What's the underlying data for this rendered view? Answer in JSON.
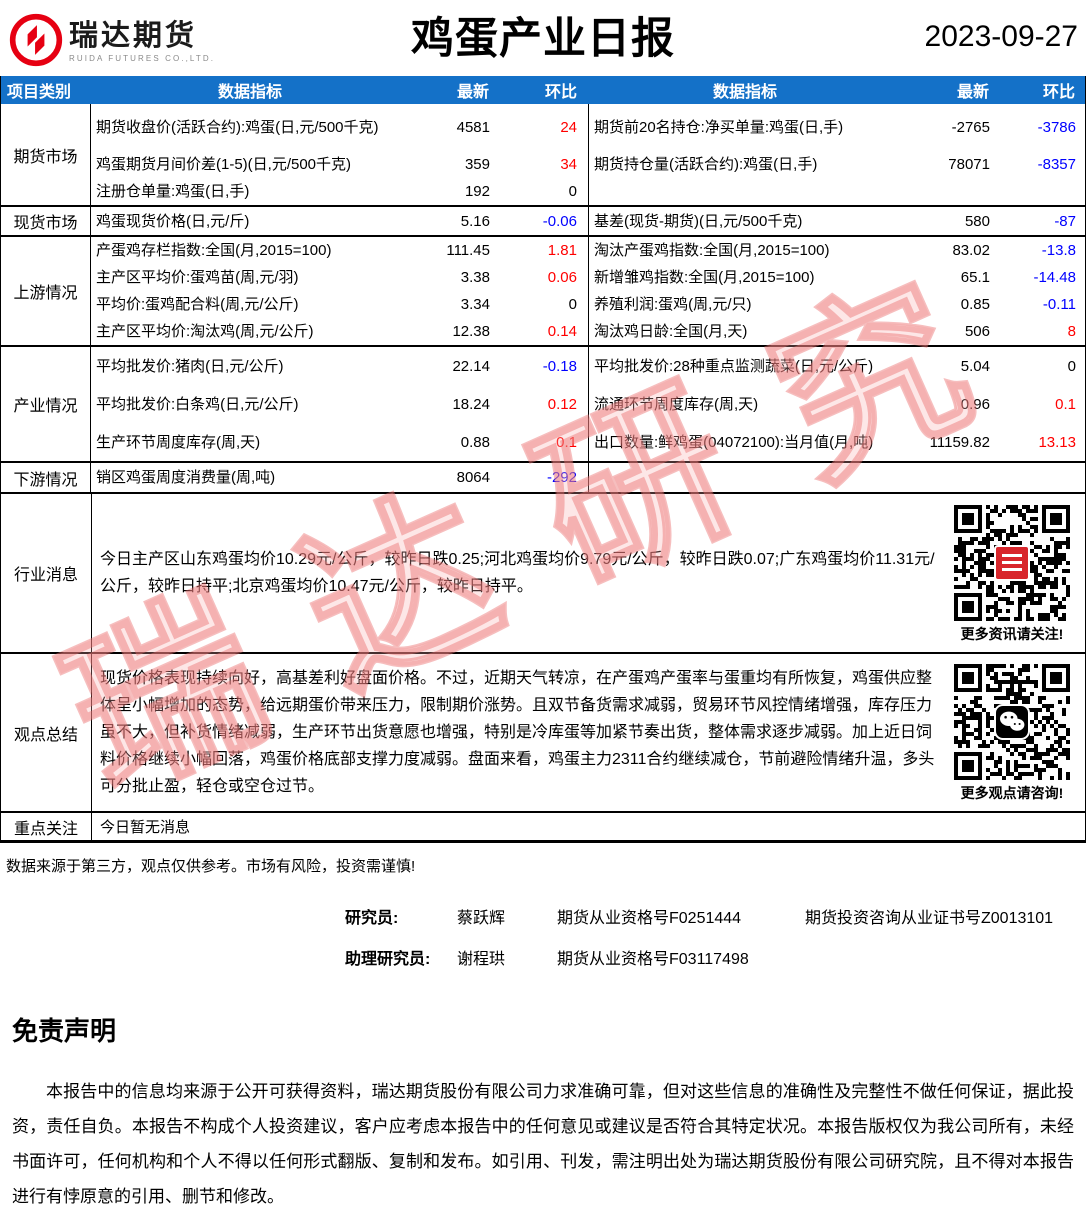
{
  "header": {
    "logo_text": "瑞达期货",
    "logo_subtext": "RUIDA FUTURES CO.,LTD.",
    "title": "鸡蛋产业日报",
    "date": "2023-09-27"
  },
  "colors": {
    "header_blue": "#1471c8",
    "increase_red": "#ff0000",
    "decrease_blue": "#0000ff",
    "logo_red": "#e60012"
  },
  "table": {
    "columns": [
      "项目类别",
      "数据指标",
      "最新",
      "环比",
      "数据指标",
      "最新",
      "环比"
    ],
    "sections": [
      {
        "category": "期货市场",
        "rows": [
          {
            "l_label": "期货收盘价(活跃合约):鸡蛋(日,元/500千克)",
            "l_value": "4581",
            "l_chg": "24",
            "l_chg_c": "red",
            "r_label": "期货前20名持仓:净买单量:鸡蛋(日,手)",
            "r_value": "-2765",
            "r_chg": "-3786",
            "r_chg_c": "blue"
          },
          {
            "l_label": "鸡蛋期货月间价差(1-5)(日,元/500千克)",
            "l_value": "359",
            "l_chg": "34",
            "l_chg_c": "red",
            "r_label": "期货持仓量(活跃合约):鸡蛋(日,手)",
            "r_value": "78071",
            "r_chg": "-8357",
            "r_chg_c": "blue"
          },
          {
            "l_label": "注册仓单量:鸡蛋(日,手)",
            "l_value": "192",
            "l_chg": "0",
            "l_chg_c": "black",
            "r_label": "",
            "r_value": "",
            "r_chg": "",
            "r_chg_c": "black"
          }
        ]
      },
      {
        "category": "现货市场",
        "rows": [
          {
            "l_label": "鸡蛋现货价格(日,元/斤)",
            "l_value": "5.16",
            "l_chg": "-0.06",
            "l_chg_c": "blue",
            "r_label": "基差(现货-期货)(日,元/500千克)",
            "r_value": "580",
            "r_chg": "-87",
            "r_chg_c": "blue"
          }
        ]
      },
      {
        "category": "上游情况",
        "rows": [
          {
            "l_label": "产蛋鸡存栏指数:全国(月,2015=100)",
            "l_value": "111.45",
            "l_chg": "1.81",
            "l_chg_c": "red",
            "r_label": "淘汰产蛋鸡指数:全国(月,2015=100)",
            "r_value": "83.02",
            "r_chg": "-13.8",
            "r_chg_c": "blue"
          },
          {
            "l_label": "主产区平均价:蛋鸡苗(周,元/羽)",
            "l_value": "3.38",
            "l_chg": "0.06",
            "l_chg_c": "red",
            "r_label": "新增雏鸡指数:全国(月,2015=100)",
            "r_value": "65.1",
            "r_chg": "-14.48",
            "r_chg_c": "blue"
          },
          {
            "l_label": "平均价:蛋鸡配合料(周,元/公斤)",
            "l_value": "3.34",
            "l_chg": "0",
            "l_chg_c": "black",
            "r_label": "养殖利润:蛋鸡(周,元/只)",
            "r_value": "0.85",
            "r_chg": "-0.11",
            "r_chg_c": "blue"
          },
          {
            "l_label": "主产区平均价:淘汰鸡(周,元/公斤)",
            "l_value": "12.38",
            "l_chg": "0.14",
            "l_chg_c": "red",
            "r_label": "淘汰鸡日龄:全国(月,天)",
            "r_value": "506",
            "r_chg": "8",
            "r_chg_c": "red"
          }
        ]
      },
      {
        "category": "产业情况",
        "rows": [
          {
            "l_label": "平均批发价:猪肉(日,元/公斤)",
            "l_value": "22.14",
            "l_chg": "-0.18",
            "l_chg_c": "blue",
            "r_label": "平均批发价:28种重点监测蔬菜(日,元/公斤)",
            "r_value": "5.04",
            "r_chg": "0",
            "r_chg_c": "black"
          },
          {
            "l_label": "平均批发价:白条鸡(日,元/公斤)",
            "l_value": "18.24",
            "l_chg": "0.12",
            "l_chg_c": "red",
            "r_label": "流通环节周度库存(周,天)",
            "r_value": "0.96",
            "r_chg": "0.1",
            "r_chg_c": "red"
          },
          {
            "l_label": "生产环节周度库存(周,天)",
            "l_value": "0.88",
            "l_chg": "0.1",
            "l_chg_c": "red",
            "r_label": "出口数量:鲜鸡蛋(04072100):当月值(月,吨)",
            "r_value": "11159.82",
            "r_chg": "13.13",
            "r_chg_c": "red"
          }
        ]
      },
      {
        "category": "下游情况",
        "rows": [
          {
            "l_label": "销区鸡蛋周度消费量(周,吨)",
            "l_value": "8064",
            "l_chg": "-292",
            "l_chg_c": "blue",
            "r_label": "",
            "r_value": "",
            "r_chg": "",
            "r_chg_c": "black"
          }
        ]
      }
    ]
  },
  "news": {
    "category": "行业消息",
    "text": "今日主产区山东鸡蛋均价10.29元/公斤，较昨日跌0.25;河北鸡蛋均价9.79元/公斤，较昨日跌0.07;广东鸡蛋均价11.31元/公斤，较昨日持平;北京鸡蛋均价10.47元/公斤，较昨日持平。",
    "qr_caption": "更多资讯请关注!"
  },
  "summary": {
    "category": "观点总结",
    "text": "现货价格表现持续向好，高基差利好盘面价格。不过，近期天气转凉，在产蛋鸡产蛋率与蛋重均有所恢复，鸡蛋供应整体呈小幅增加的态势，给远期蛋价带来压力，限制期价涨势。且双节备货需求减弱，贸易环节风控情绪增强，库存压力虽不大，但补货情绪减弱，生产环节出货意愿也增强，特别是冷库蛋等加紧节奏出货，整体需求逐步减弱。加上近日饲料价格继续小幅回落，鸡蛋价格底部支撑力度减弱。盘面来看，鸡蛋主力2311合约继续减仓，节前避险情绪升温，多头可分批止盈，轻仓或空仓过节。",
    "qr_caption": "更多观点请咨询!"
  },
  "focus": {
    "category": "重点关注",
    "text": "今日暂无消息"
  },
  "footnote": "数据来源于第三方，观点仅供参考。市场有风险，投资需谨慎!",
  "staff": {
    "researcher_label": "研究员:",
    "researcher_name": "蔡跃辉",
    "researcher_cert": "期货从业资格号F0251444",
    "researcher_cert2": "期货投资咨询从业证书号Z0013101",
    "assistant_label": "助理研究员:",
    "assistant_name": "谢程珙",
    "assistant_cert": "期货从业资格号F03117498"
  },
  "disclaimer": {
    "title": "免责声明",
    "body": "本报告中的信息均来源于公开可获得资料，瑞达期货股份有限公司力求准确可靠，但对这些信息的准确性及完整性不做任何保证，据此投资，责任自负。本报告不构成个人投资建议，客户应考虑本报告中的任何意见或建议是否符合其特定状况。本报告版权仅为我公司所有，未经书面许可，任何机构和个人不得以任何形式翻版、复制和发布。如引用、刊发，需注明出处为瑞达期货股份有限公司研究院，且不得对本报告进行有悖原意的引用、删节和修改。"
  },
  "watermark": "瑞达研究"
}
